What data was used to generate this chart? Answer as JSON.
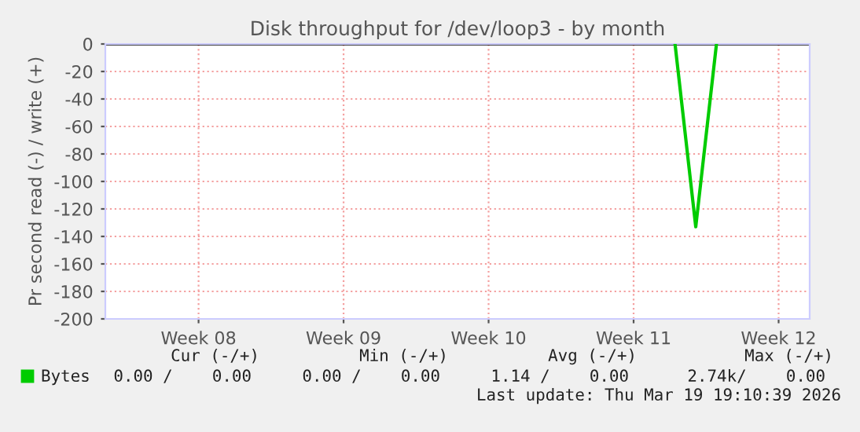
{
  "chart_data": {
    "type": "line",
    "title": "Disk throughput for /dev/loop3 - by month",
    "ylabel": "Pr second read (-) / write (+)",
    "categories": [
      null,
      null,
      null,
      null,
      "Week 08",
      null,
      null,
      null,
      null,
      null,
      null,
      "Week 09",
      null,
      null,
      null,
      null,
      null,
      null,
      "Week 10",
      null,
      null,
      null,
      null,
      null,
      null,
      "Week 11",
      null,
      null,
      null,
      null,
      null,
      null,
      "Week 12",
      null
    ],
    "series": [
      {
        "name": "Bytes",
        "color": "#00cc00",
        "values": [
          null,
          null,
          null,
          null,
          null,
          null,
          null,
          null,
          null,
          null,
          null,
          null,
          null,
          null,
          null,
          null,
          null,
          null,
          null,
          null,
          null,
          null,
          null,
          null,
          null,
          null,
          null,
          0,
          -133,
          0,
          null,
          null,
          null,
          null
        ]
      }
    ],
    "ylim": [
      -200,
      0
    ],
    "yticks": [
      0,
      -20,
      -40,
      -60,
      -80,
      -100,
      -120,
      -140,
      -160,
      -180,
      -200
    ],
    "ref_lines": [
      {
        "axis": "y",
        "value": 0,
        "color": "#000000"
      }
    ],
    "grid": true,
    "legend": "bottom left",
    "annotations": [
      "Cur (-/+)",
      "Min (-/+)",
      "Avg (-/+)",
      "Max (-/+)",
      "0.00 /    0.00",
      "0.00 /    0.00",
      "1.14 /    0.00",
      "2.74k/    0.00",
      "Last update: Thu Mar 19 19:10:39 2026"
    ]
  }
}
